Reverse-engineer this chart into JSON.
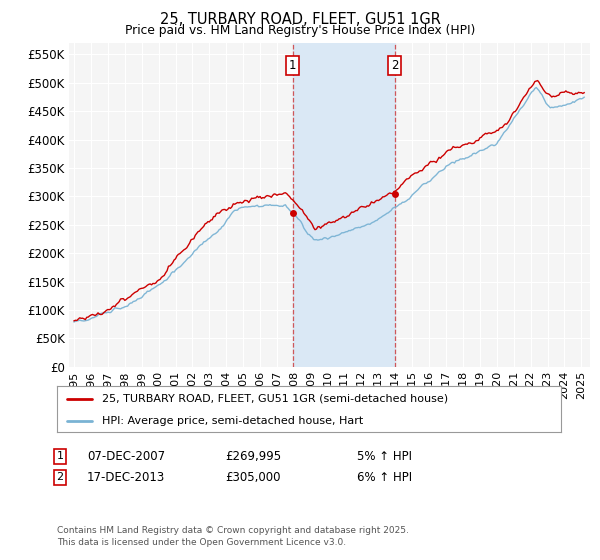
{
  "title": "25, TURBARY ROAD, FLEET, GU51 1GR",
  "subtitle": "Price paid vs. HM Land Registry's House Price Index (HPI)",
  "ylabel_ticks": [
    "£0",
    "£50K",
    "£100K",
    "£150K",
    "£200K",
    "£250K",
    "£300K",
    "£350K",
    "£400K",
    "£450K",
    "£500K",
    "£550K"
  ],
  "ytick_vals": [
    0,
    50000,
    100000,
    150000,
    200000,
    250000,
    300000,
    350000,
    400000,
    450000,
    500000,
    550000
  ],
  "ylim": [
    0,
    570000
  ],
  "xlim_start": 1994.7,
  "xlim_end": 2025.5,
  "xtick_years": [
    1995,
    1996,
    1997,
    1998,
    1999,
    2000,
    2001,
    2002,
    2003,
    2004,
    2005,
    2006,
    2007,
    2008,
    2009,
    2010,
    2011,
    2012,
    2013,
    2014,
    2015,
    2016,
    2017,
    2018,
    2019,
    2020,
    2021,
    2022,
    2023,
    2024,
    2025
  ],
  "hpi_color": "#7ab3d4",
  "price_color": "#cc0000",
  "shade_color": "#dae8f5",
  "marker1_year": 2007.92,
  "marker2_year": 2013.96,
  "marker1_price": 269995,
  "marker2_price": 305000,
  "legend1": "25, TURBARY ROAD, FLEET, GU51 1GR (semi-detached house)",
  "legend2": "HPI: Average price, semi-detached house, Hart",
  "note1_num": "1",
  "note1_date": "07-DEC-2007",
  "note1_price": "£269,995",
  "note1_hpi": "5% ↑ HPI",
  "note2_num": "2",
  "note2_date": "17-DEC-2013",
  "note2_price": "£305,000",
  "note2_hpi": "6% ↑ HPI",
  "footer": "Contains HM Land Registry data © Crown copyright and database right 2025.\nThis data is licensed under the Open Government Licence v3.0.",
  "background_color": "#ffffff",
  "plot_bg_color": "#f5f5f5"
}
